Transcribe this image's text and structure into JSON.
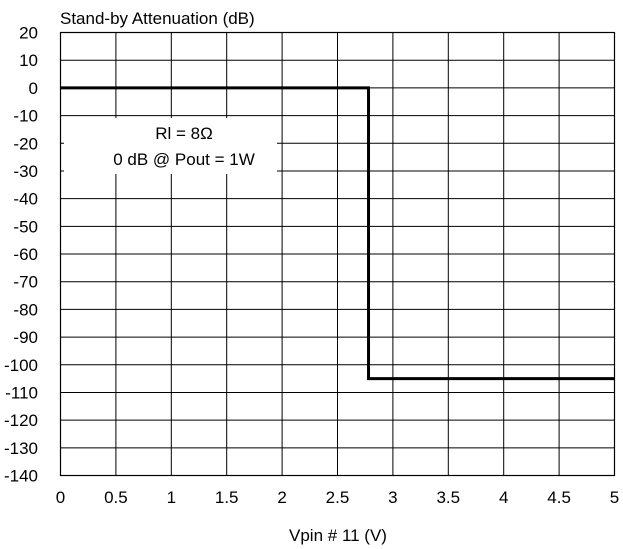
{
  "chart_data": {
    "type": "line",
    "title": "",
    "ylabel": "Stand-by Attenuation (dB)",
    "xlabel": "Vpin # 11 (V)",
    "xlim": [
      0,
      5
    ],
    "ylim": [
      -140,
      20
    ],
    "x_ticks": [
      "0",
      "0.5",
      "1",
      "1.5",
      "2",
      "2.5",
      "3",
      "3.5",
      "4",
      "4.5",
      "5"
    ],
    "y_ticks": [
      "20",
      "10",
      "0",
      "-10",
      "-20",
      "-30",
      "-40",
      "-50",
      "-60",
      "-70",
      "-80",
      "-90",
      "-100",
      "-110",
      "-120",
      "-130",
      "-140"
    ],
    "grid": true,
    "series": [
      {
        "x": [
          0,
          2.78,
          2.78,
          5
        ],
        "y": [
          0,
          0,
          -105,
          -105
        ],
        "color": "#000000"
      }
    ],
    "annotations": [
      "Rl = 8Ω",
      "0 dB @ Pout = 1W"
    ]
  }
}
